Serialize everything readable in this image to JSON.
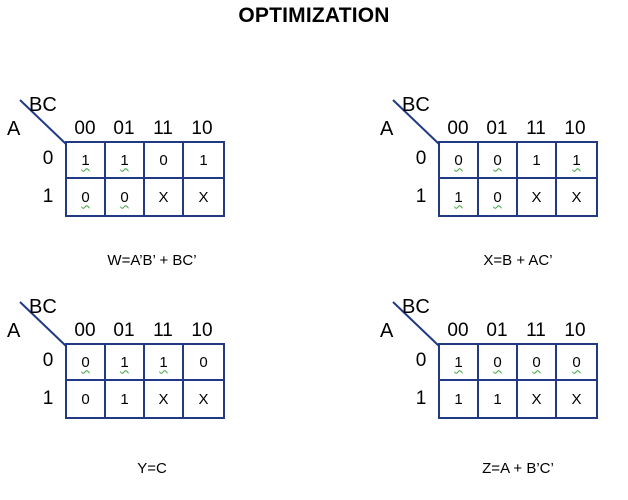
{
  "title": "OPTIMIZATION",
  "row_var": "A",
  "col_var": "BC",
  "col_labels": [
    "00",
    "01",
    "11",
    "10"
  ],
  "row_labels": [
    "0",
    "1"
  ],
  "colors": {
    "grid_line": "#203a86",
    "spellcheck_underline": "#3aa03a"
  },
  "maps": [
    {
      "id": "w",
      "rows": [
        [
          "1",
          "1",
          "0",
          "1"
        ],
        [
          "0",
          "0",
          "X",
          "X"
        ]
      ],
      "squiggle": [
        [
          true,
          true,
          false,
          false
        ],
        [
          true,
          true,
          false,
          false
        ]
      ],
      "equation": "W=A’B’ + BC’"
    },
    {
      "id": "x",
      "rows": [
        [
          "0",
          "0",
          "1",
          "1"
        ],
        [
          "1",
          "0",
          "X",
          "X"
        ]
      ],
      "squiggle": [
        [
          true,
          true,
          false,
          true
        ],
        [
          true,
          true,
          false,
          false
        ]
      ],
      "equation": "X=B + AC’"
    },
    {
      "id": "y",
      "rows": [
        [
          "0",
          "1",
          "1",
          "0"
        ],
        [
          "0",
          "1",
          "X",
          "X"
        ]
      ],
      "squiggle": [
        [
          true,
          true,
          true,
          false
        ],
        [
          false,
          false,
          false,
          false
        ]
      ],
      "equation": "Y=C"
    },
    {
      "id": "z",
      "rows": [
        [
          "1",
          "0",
          "0",
          "0"
        ],
        [
          "1",
          "1",
          "X",
          "X"
        ]
      ],
      "squiggle": [
        [
          true,
          true,
          true,
          true
        ],
        [
          false,
          false,
          false,
          false
        ]
      ],
      "equation": "Z=A + B’C’"
    }
  ]
}
